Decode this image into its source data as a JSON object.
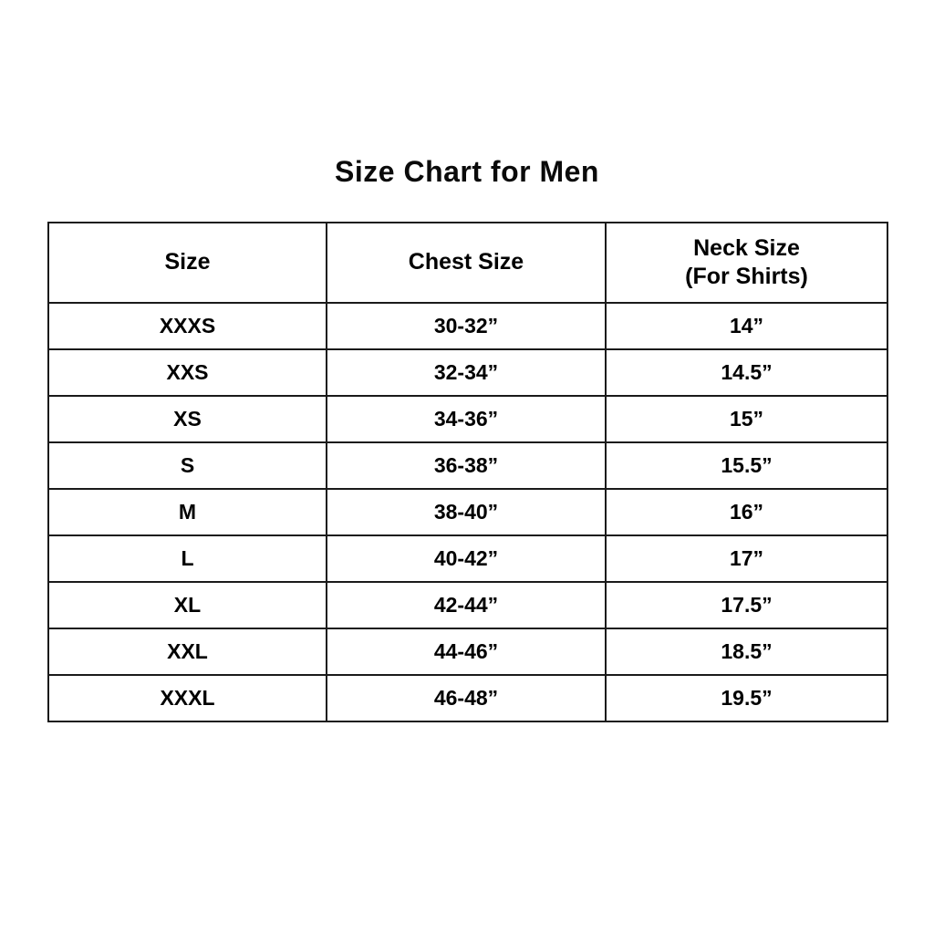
{
  "page": {
    "title": "Size Chart for Men",
    "background_color": "#ffffff",
    "border_color": "#1a1a1a",
    "text_color": "#000000"
  },
  "table": {
    "columns": [
      {
        "label": "Size",
        "sublabel": ""
      },
      {
        "label": "Chest Size",
        "sublabel": ""
      },
      {
        "label": "Neck Size",
        "sublabel": "(For Shirts)"
      }
    ],
    "rows": [
      {
        "size": "XXXS",
        "chest": "30-32”",
        "neck": "14”"
      },
      {
        "size": "XXS",
        "chest": "32-34”",
        "neck": "14.5”"
      },
      {
        "size": "XS",
        "chest": "34-36”",
        "neck": "15”"
      },
      {
        "size": "S",
        "chest": "36-38”",
        "neck": "15.5”"
      },
      {
        "size": "M",
        "chest": "38-40”",
        "neck": "16”"
      },
      {
        "size": "L",
        "chest": "40-42”",
        "neck": "17”"
      },
      {
        "size": "XL",
        "chest": "42-44”",
        "neck": "17.5”"
      },
      {
        "size": "XXL",
        "chest": "44-46”",
        "neck": "18.5”"
      },
      {
        "size": "XXXL",
        "chest": "46-48”",
        "neck": "19.5”"
      }
    ]
  },
  "chart_data": {
    "type": "table",
    "title": "Size Chart for Men",
    "columns": [
      "Size",
      "Chest Size",
      "Neck Size (For Shirts)"
    ],
    "rows": [
      [
        "XXXS",
        "30-32”",
        "14”"
      ],
      [
        "XXS",
        "32-34”",
        "14.5”"
      ],
      [
        "XS",
        "34-36”",
        "15”"
      ],
      [
        "S",
        "36-38”",
        "15.5”"
      ],
      [
        "M",
        "38-40”",
        "16”"
      ],
      [
        "L",
        "40-42”",
        "17”"
      ],
      [
        "XL",
        "42-44”",
        "17.5”"
      ],
      [
        "XXL",
        "44-46”",
        "18.5”"
      ],
      [
        "XXXL",
        "46-48”",
        "19.5”"
      ]
    ]
  }
}
